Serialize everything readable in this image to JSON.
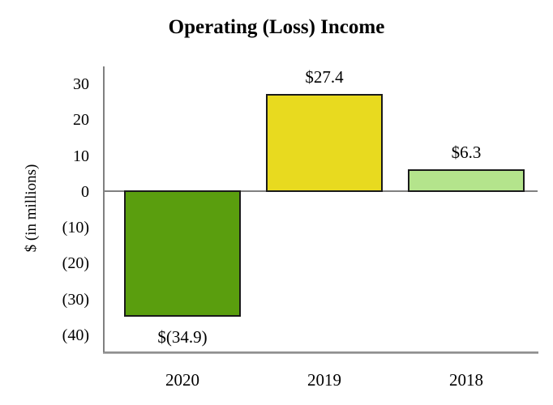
{
  "chart_data": {
    "type": "bar",
    "title": "Operating (Loss) Income",
    "ylabel": "$ (in millions)",
    "xlabel": "",
    "categories": [
      "2020",
      "2019",
      "2018"
    ],
    "values": [
      -34.9,
      27.4,
      6.3
    ],
    "value_labels": [
      "$(34.9)",
      "$27.4",
      "$6.3"
    ],
    "bar_colors": [
      "#5a9e0e",
      "#e8da1f",
      "#b4e48c"
    ],
    "bar_border_color": "#1a1a1a",
    "yticks": [
      30,
      20,
      10,
      0,
      -10,
      -20,
      -30,
      -40
    ],
    "ytick_labels": [
      "30",
      "20",
      "10",
      "0",
      "(10)",
      "(20)",
      "(30)",
      "(40)"
    ],
    "ylim": [
      -45,
      35
    ],
    "grid": "zero-line-only",
    "legend": "none",
    "axis_color": "#808080",
    "background_color": "#ffffff"
  }
}
